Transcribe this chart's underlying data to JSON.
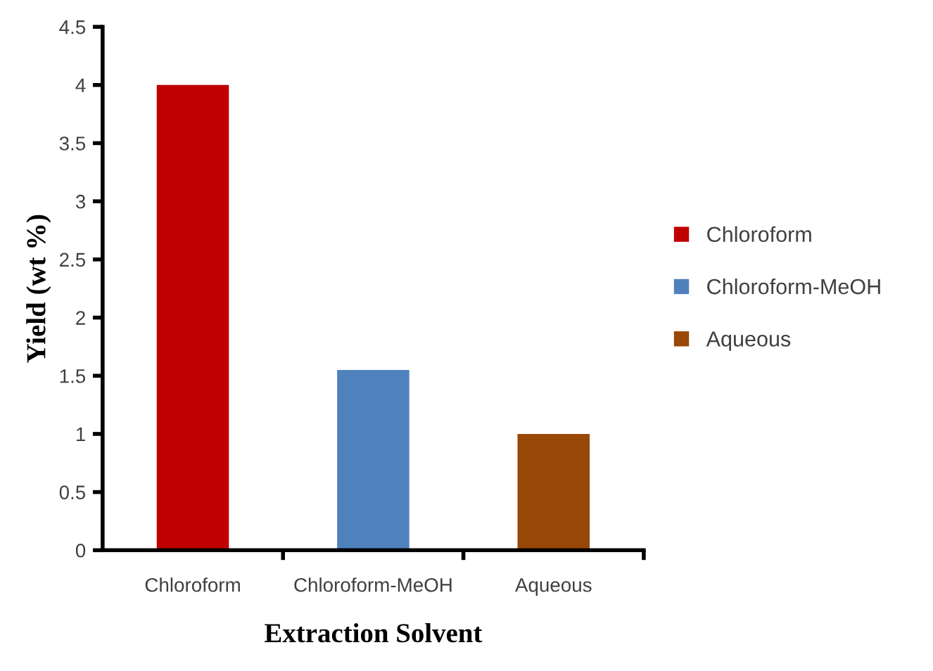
{
  "chart_data": {
    "type": "bar",
    "xlabel": "Extraction Solvent",
    "ylabel": "Yield (wt %)",
    "categories": [
      "Chloroform",
      "Chloroform-MeOH",
      "Aqueous"
    ],
    "series": [
      {
        "name": "Chloroform",
        "color": "#c00000",
        "values": [
          4,
          null,
          null
        ]
      },
      {
        "name": "Chloroform-MeOH",
        "color": "#4f81bd",
        "values": [
          null,
          1.55,
          null
        ]
      },
      {
        "name": "Aqueous",
        "color": "#984807",
        "values": [
          null,
          null,
          1
        ]
      }
    ],
    "ylim": [
      0,
      4.5
    ],
    "yticks": [
      0,
      0.5,
      1,
      1.5,
      2,
      2.5,
      3,
      3.5,
      4,
      4.5
    ],
    "grid": false,
    "legend": "right"
  }
}
